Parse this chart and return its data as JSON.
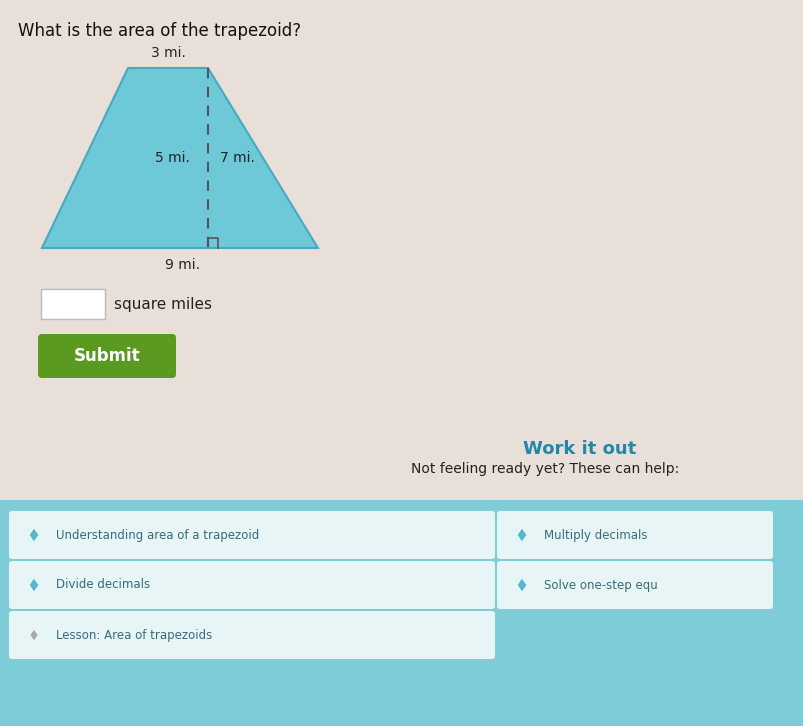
{
  "title": "What is the area of the trapezoid?",
  "title_fontsize": 12,
  "bg_color": "#e8e0d8",
  "trapezoid_color": "#6dc8d8",
  "trapezoid_edge_color": "#4aa8c0",
  "label_3mi": "3 mi.",
  "label_5mi": "5 mi.",
  "label_7mi": "7 mi.",
  "label_9mi": "9 mi.",
  "square_miles_text": "square miles",
  "submit_text": "Submit",
  "submit_color": "#5a9a20",
  "submit_text_color": "#ffffff",
  "work_it_out": "Work it out",
  "work_it_out_color": "#2288aa",
  "not_feeling": "Not feeling ready yet? These can help:",
  "link1": "Understanding area of a trapezoid",
  "link2": "Multiply decimals",
  "link3": "Divide decimals",
  "link4": "Solve one-step equ",
  "link5": "Lesson: Area of trapezoids",
  "diamond_color": "#55b8d0",
  "panel_color": "#7eccd8",
  "link_bg": "#dce8e8",
  "label_color": "#222222",
  "dashed_color": "#555555"
}
